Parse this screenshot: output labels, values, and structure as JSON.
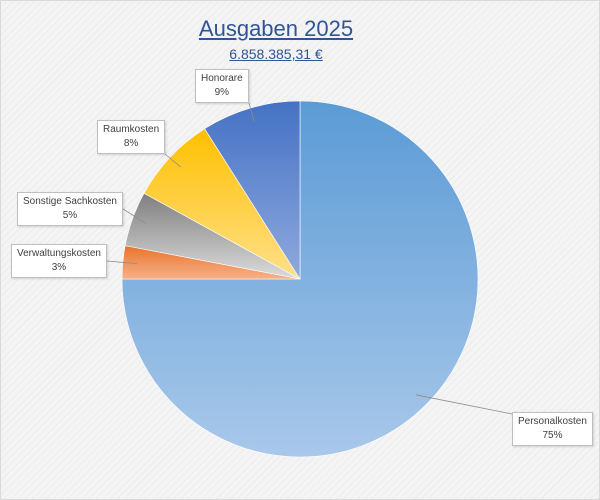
{
  "chart_data": {
    "type": "pie",
    "title": "Ausgaben 2025",
    "subtitle": "6.858.385,31 €",
    "slices": [
      {
        "label": "Personalkosten",
        "value": 75,
        "value_label": "75%",
        "color": "#5b9bd5"
      },
      {
        "label": "Verwaltungskosten",
        "value": 3,
        "value_label": "3%",
        "color": "#ed7d31"
      },
      {
        "label": "Sonstige Sachkosten",
        "value": 5,
        "value_label": "5%",
        "color": "#a5a5a5"
      },
      {
        "label": "Raumkosten",
        "value": 8,
        "value_label": "8%",
        "color": "#ffc000"
      },
      {
        "label": "Honorare",
        "value": 9,
        "value_label": "9%",
        "color": "#4472c4"
      }
    ],
    "legend": "none",
    "label_style": "callouts"
  }
}
